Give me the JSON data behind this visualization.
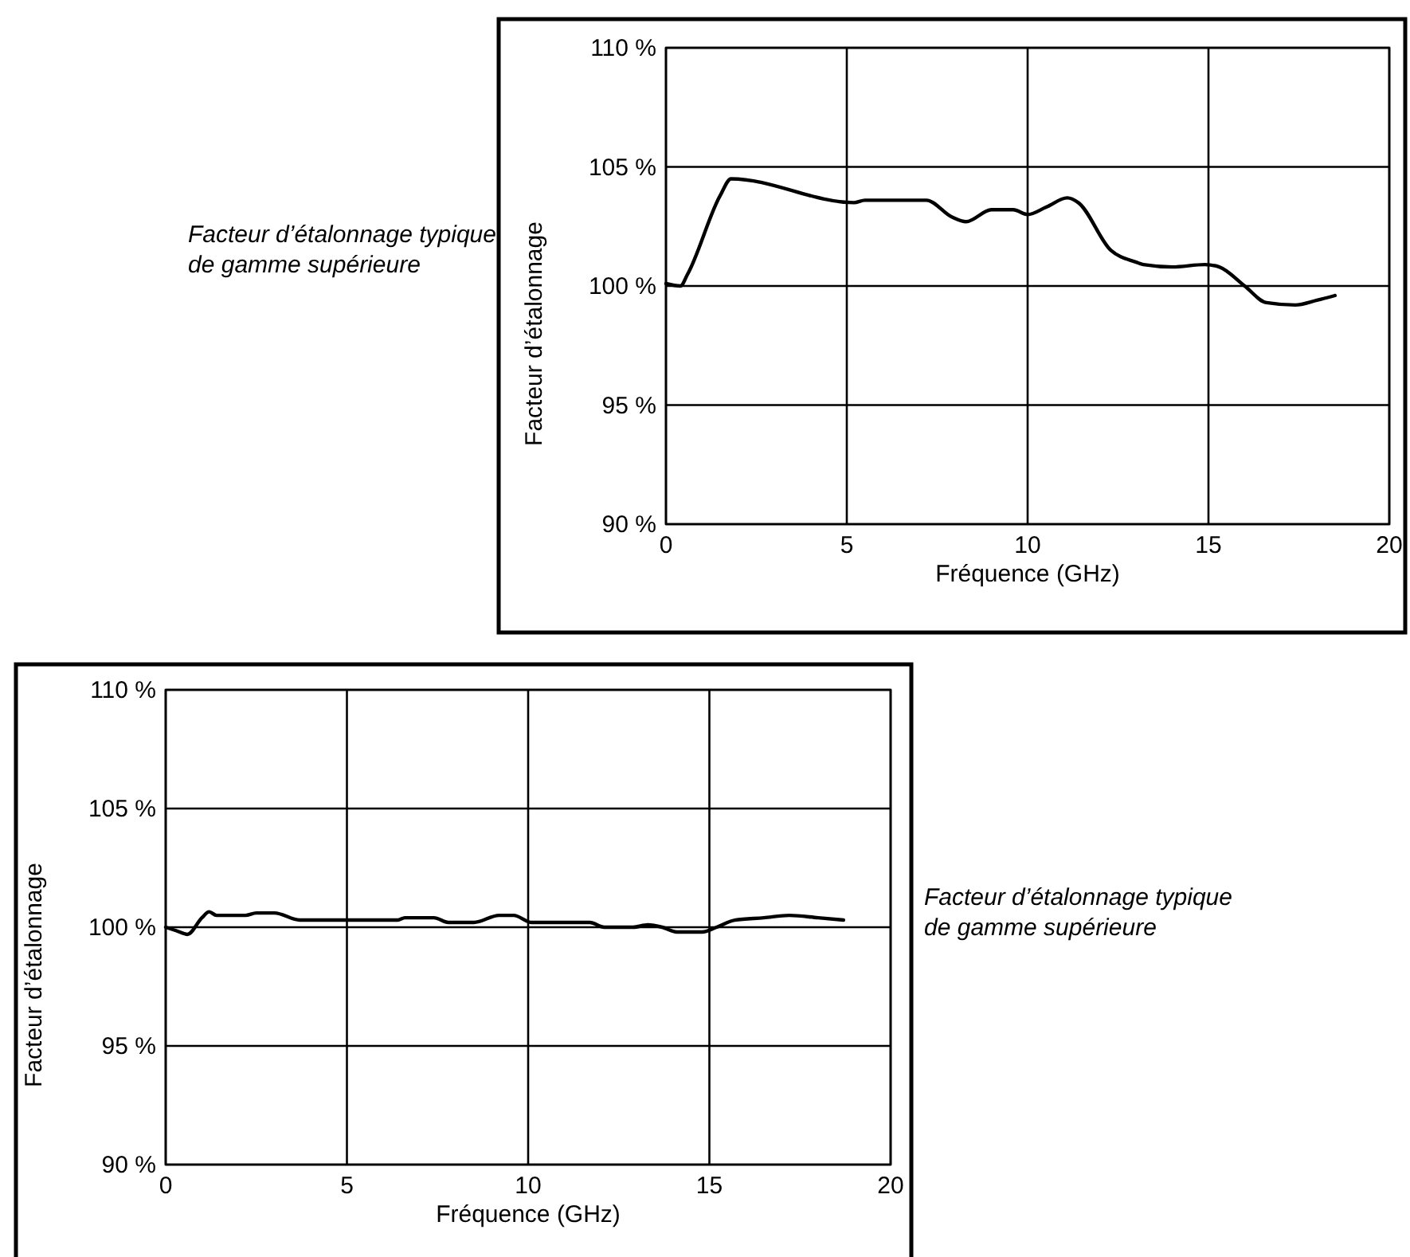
{
  "chart_data": [
    {
      "type": "line",
      "xlabel": "Fréquence (GHz)",
      "ylabel": "Facteur d’étalonnage",
      "annotations": [
        "Facteur d’étalonnage typique de gamme supérieure"
      ],
      "color": "#000000",
      "grid": true,
      "x": [
        0,
        0.4,
        0.6,
        1.5,
        1.8,
        5.2,
        5.5,
        7.2,
        7.9,
        8.3,
        9.0,
        9.6,
        10.0,
        10.5,
        11.1,
        11.4,
        12.3,
        13.0,
        13.2,
        14.0,
        14.9,
        15.3,
        16.0,
        16.6,
        17.4,
        18.0,
        18.5
      ],
      "values": [
        100.1,
        100.0,
        100.5,
        103.8,
        104.5,
        103.5,
        103.6,
        103.6,
        102.9,
        102.7,
        103.2,
        103.2,
        103.0,
        103.3,
        103.7,
        103.5,
        101.5,
        101.0,
        100.9,
        100.8,
        100.9,
        100.8,
        100.0,
        99.3,
        99.2,
        99.4,
        99.6
      ],
      "xlim": [
        0,
        20
      ],
      "ylim": [
        90,
        110
      ],
      "xticks": [
        0,
        5,
        10,
        15,
        20
      ],
      "yticks": [
        {
          "value": 90,
          "label": "90 %"
        },
        {
          "value": 95,
          "label": "95 %"
        },
        {
          "value": 100,
          "label": "100 %"
        },
        {
          "value": 105,
          "label": "105 %"
        },
        {
          "value": 110,
          "label": "110 %"
        }
      ]
    },
    {
      "type": "line",
      "xlabel": "Fréquence (GHz)",
      "ylabel": "Facteur d’étalonnage",
      "annotations": [
        "Facteur d’étalonnage typique de gamme supérieure"
      ],
      "color": "#000000",
      "grid": true,
      "x": [
        0,
        0.3,
        0.6,
        1.0,
        1.2,
        1.4,
        2.2,
        2.5,
        3.0,
        3.7,
        6.4,
        6.6,
        7.4,
        7.8,
        8.5,
        9.2,
        9.6,
        10.1,
        11.7,
        12.1,
        12.9,
        13.3,
        13.7,
        14.1,
        14.8,
        15.2,
        15.7,
        16.5,
        17.2,
        18.0,
        18.7
      ],
      "values": [
        100.0,
        99.85,
        99.7,
        100.4,
        100.65,
        100.5,
        100.5,
        100.6,
        100.6,
        100.3,
        100.3,
        100.4,
        100.4,
        100.2,
        100.2,
        100.5,
        100.5,
        100.2,
        100.2,
        100.0,
        100.0,
        100.1,
        100.0,
        99.8,
        99.8,
        100.0,
        100.3,
        100.4,
        100.5,
        100.4,
        100.3
      ],
      "xlim": [
        0,
        20
      ],
      "ylim": [
        90,
        110
      ],
      "xticks": [
        0,
        5,
        10,
        15,
        20
      ],
      "yticks": [
        {
          "value": 90,
          "label": "90 %"
        },
        {
          "value": 95,
          "label": "95 %"
        },
        {
          "value": 100,
          "label": "100 %"
        },
        {
          "value": 105,
          "label": "105 %"
        },
        {
          "value": 110,
          "label": "110 %"
        }
      ]
    }
  ]
}
